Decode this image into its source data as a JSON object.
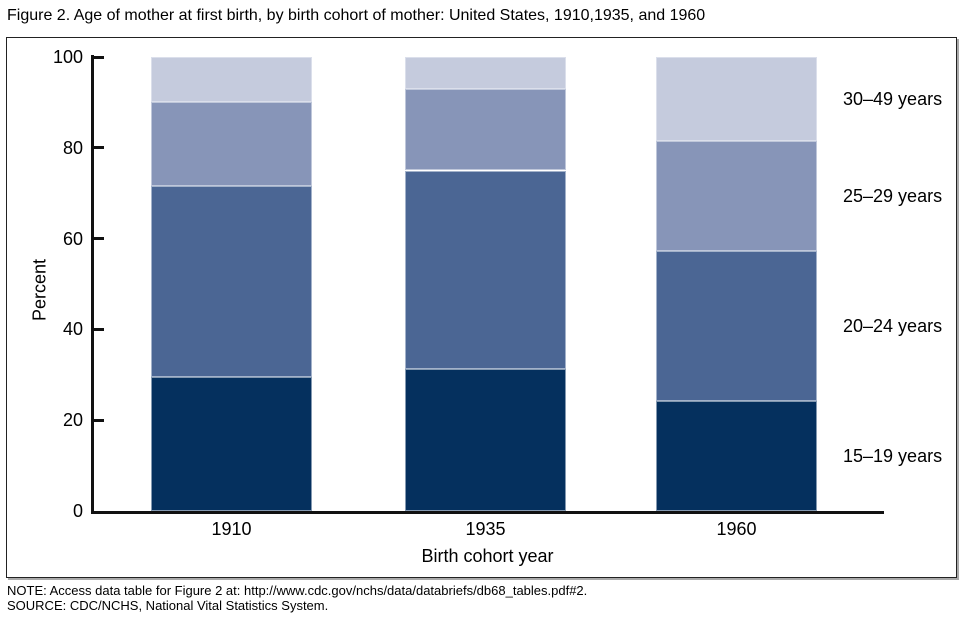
{
  "figure": {
    "title": "Figure 2. Age of mother at first birth, by birth cohort of mother: United States, 1910,1935, and 1960",
    "note": "NOTE: Access data table for Figure 2 at: http://www.cdc.gov/nchs/data/databriefs/db68_tables.pdf#2.",
    "source": "SOURCE: CDC/NCHS, National Vital Statistics System."
  },
  "chart_data": {
    "type": "bar",
    "stacked": true,
    "title": "Figure 2. Age of mother at first birth, by birth cohort of mother: United States, 1910,1935, and 1960",
    "categories": [
      "1910",
      "1935",
      "1960"
    ],
    "series": [
      {
        "name": "15–19 years",
        "color": "#05305E",
        "values": [
          29.5,
          31.3,
          24.2
        ]
      },
      {
        "name": "20–24 years",
        "color": "#4B6694",
        "values": [
          42.0,
          43.7,
          33.0
        ]
      },
      {
        "name": "25–29 years",
        "color": "#8795B8",
        "values": [
          18.5,
          18.0,
          24.2
        ]
      },
      {
        "name": "30–49 years",
        "color": "#C5CBDD",
        "values": [
          10.0,
          7.0,
          18.6
        ]
      }
    ],
    "xlabel": "Birth cohort year",
    "ylabel": "Percent",
    "ylim": [
      0,
      100
    ],
    "yticks": [
      0,
      20,
      40,
      60,
      80,
      100
    ],
    "grid": false,
    "legend_position": "right-of-bars",
    "axis_color": "#111111"
  }
}
